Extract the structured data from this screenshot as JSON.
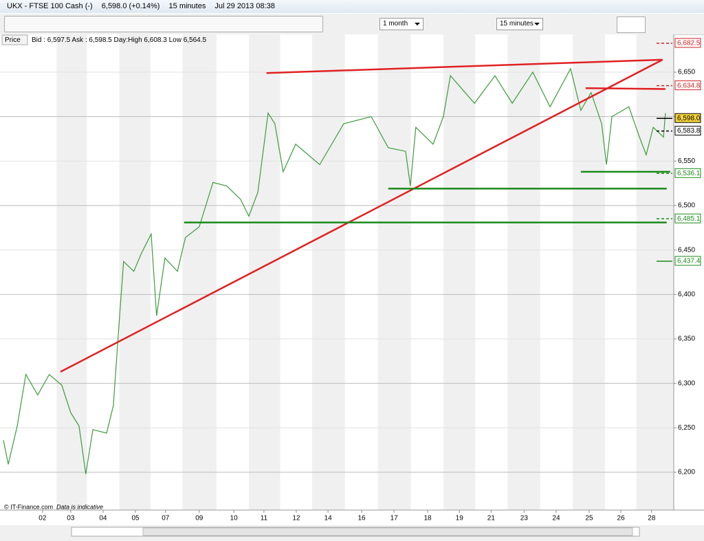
{
  "window": {
    "title": "UKX - FTSE 100 Cash (-)",
    "quote": "6,598.0 (+0.14%)",
    "interval": "15 minutes",
    "timestamp": "Jul 29 2013 08:38"
  },
  "toolbar": {
    "range": "1 month",
    "interval": "15 minutes"
  },
  "info": {
    "tab": "Price",
    "quote_line": "Bid : 6,597.5 Ask : 6,598.5 Day:High 6,608.3 Low 6,564.5"
  },
  "footer": {
    "source": "© IT-Finance.com",
    "note": "Data is indicative"
  },
  "chart_data": {
    "type": "line",
    "x": [
      -0.22,
      -0.07,
      0.21,
      0.48,
      0.85,
      1.21,
      1.6,
      1.88,
      2.14,
      2.35,
      2.57,
      3.0,
      3.21,
      3.42,
      3.53,
      3.85,
      4.07,
      4.39,
      4.56,
      4.82,
      5.21,
      5.46,
      5.89,
      6.32,
      6.75,
      7.18,
      7.44,
      7.72,
      8.04,
      8.25,
      8.51,
      8.9,
      9.65,
      10.4,
      11.26,
      11.79,
      12.33,
      12.48,
      12.65,
      13.19,
      13.51,
      13.73,
      14.48,
      15.12,
      15.66,
      16.3,
      16.84,
      17.48,
      17.8,
      18.12,
      18.45,
      18.6,
      18.77,
      19.3,
      19.63,
      19.84,
      20.06,
      20.38,
      20.44
    ],
    "series": [
      {
        "color": "#3c9b3c",
        "values": [
          6236,
          6209,
          6252,
          6310,
          6287,
          6310,
          6298,
          6267,
          6252,
          6198,
          6248,
          6244,
          6275,
          6383,
          6437,
          6426,
          6445,
          6468,
          6376,
          6441,
          6426,
          6464,
          6476,
          6526,
          6522,
          6507,
          6488,
          6515,
          6604,
          6592,
          6538,
          6569,
          6546,
          6592,
          6600,
          6565,
          6561,
          6522,
          6588,
          6569,
          6600,
          6646,
          6615,
          6646,
          6615,
          6650,
          6611,
          6654,
          6607,
          6627,
          6592,
          6546,
          6600,
          6611,
          6577,
          6557,
          6588,
          6577,
          6604
        ]
      }
    ],
    "xlim": [
      -0.22,
      20.7
    ],
    "xticks": [
      {
        "value": 1,
        "label": "02"
      },
      {
        "value": 1.88,
        "label": "03"
      },
      {
        "value": 2.89,
        "label": "04"
      },
      {
        "value": 3.9,
        "label": "05"
      },
      {
        "value": 4.84,
        "label": "07"
      },
      {
        "value": 5.89,
        "label": "09"
      },
      {
        "value": 6.97,
        "label": "10"
      },
      {
        "value": 7.91,
        "label": "11"
      },
      {
        "value": 8.92,
        "label": "12"
      },
      {
        "value": 9.91,
        "label": "14"
      },
      {
        "value": 10.96,
        "label": "16"
      },
      {
        "value": 11.97,
        "label": "17"
      },
      {
        "value": 13.02,
        "label": "18"
      },
      {
        "value": 14.01,
        "label": "19"
      },
      {
        "value": 15.0,
        "label": "21"
      },
      {
        "value": 16.03,
        "label": "23"
      },
      {
        "value": 17.03,
        "label": "24"
      },
      {
        "value": 18.06,
        "label": "25"
      },
      {
        "value": 19.05,
        "label": "26"
      },
      {
        "value": 20.01,
        "label": "28"
      }
    ],
    "ylim": [
      6157.5,
      6692.5
    ],
    "yticks": [
      {
        "value": 6200,
        "label": "6,200"
      },
      {
        "value": 6250,
        "label": "6,250"
      },
      {
        "value": 6300,
        "label": "6,300"
      },
      {
        "value": 6350,
        "label": "6,350"
      },
      {
        "value": 6400,
        "label": "6,400"
      },
      {
        "value": 6450,
        "label": "6,450"
      },
      {
        "value": 6500,
        "label": "6,500"
      },
      {
        "value": 6550,
        "label": "6,550"
      },
      {
        "value": 6600,
        "label": "6,600"
      },
      {
        "value": 6650,
        "label": "6,650"
      }
    ],
    "grid": true,
    "trendlines": [
      {
        "x": [
          1.56,
          20.35
        ],
        "y": [
          6313,
          6664
        ],
        "color": "#e02020"
      },
      {
        "x": [
          7.99,
          20.35
        ],
        "y": [
          6649,
          6664
        ],
        "color": "#e02020"
      },
      {
        "x": [
          17.95,
          20.44
        ],
        "y": [
          6632,
          6631
        ],
        "color": "#e02020"
      },
      {
        "x": [
          17.8,
          20.59
        ],
        "y": [
          6538,
          6538
        ],
        "color": "#1a8a1a"
      },
      {
        "x": [
          11.79,
          20.48
        ],
        "y": [
          6519,
          6519
        ],
        "color": "#1a8a1a"
      },
      {
        "x": [
          5.42,
          20.48
        ],
        "y": [
          6481,
          6481
        ],
        "color": "#1a8a1a"
      }
    ],
    "price_levels": [
      {
        "value": 6682.5,
        "label": "6,682.5",
        "color": "#d02020",
        "dashed": true
      },
      {
        "value": 6634.8,
        "label": "6,634.8",
        "color": "#d02020",
        "dashed": true
      },
      {
        "value": 6598.0,
        "label": "6,598.0",
        "color": "#000000",
        "dashed": false
      },
      {
        "value": 6583.8,
        "label": "6,583.8",
        "color": "#000000",
        "dashed": true
      },
      {
        "value": 6536.1,
        "label": "6,536.1",
        "color": "#1a8a1a",
        "dashed": true
      },
      {
        "value": 6485.1,
        "label": "6,485.1",
        "color": "#1a8a1a",
        "dashed": true
      },
      {
        "value": 6437.4,
        "label": "6,437.4",
        "color": "#1a8a1a",
        "dashed": false
      }
    ]
  }
}
